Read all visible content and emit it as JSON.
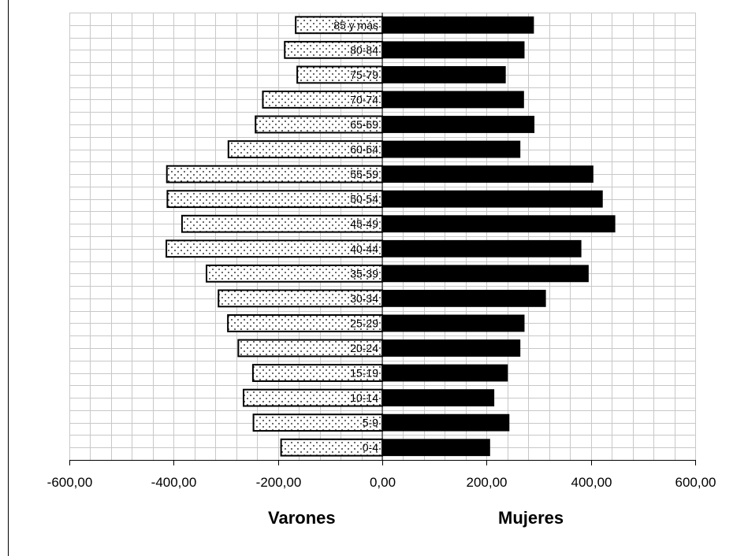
{
  "chart_data": {
    "type": "bar",
    "orientation": "horizontal",
    "title": "",
    "xlim": [
      -600,
      600
    ],
    "xticks": [
      -600,
      -400,
      -200,
      0,
      200,
      400,
      600
    ],
    "xtick_labels": [
      "-600,00",
      "-400,00",
      "-200,00",
      "0,00",
      "200,00",
      "400,00",
      "600,00"
    ],
    "grid": true,
    "categories": [
      "0-4",
      "5-9",
      "10-14",
      "15-19",
      "20-24",
      "25-29",
      "30-34",
      "35-39",
      "40-44",
      "45-49",
      "50-54",
      "55-59",
      "60-64",
      "65-69",
      "70-74",
      "75-79",
      "80-84",
      "85 y más"
    ],
    "series": [
      {
        "name": "Varones",
        "values": [
          -194,
          -247,
          -266,
          -248,
          -276,
          -296,
          -314,
          -337,
          -414,
          -384,
          -412,
          -413,
          -295,
          -243,
          -229,
          -163,
          -187,
          -166
        ],
        "color": "#ffffff",
        "pattern": "dots"
      },
      {
        "name": "Mujeres",
        "values": [
          206,
          243,
          214,
          240,
          264,
          272,
          313,
          395,
          381,
          446,
          422,
          404,
          264,
          291,
          271,
          236,
          272,
          290
        ],
        "color": "#000000"
      }
    ],
    "legend": [
      "Varones",
      "Mujeres"
    ],
    "legend_position": "bottom"
  }
}
